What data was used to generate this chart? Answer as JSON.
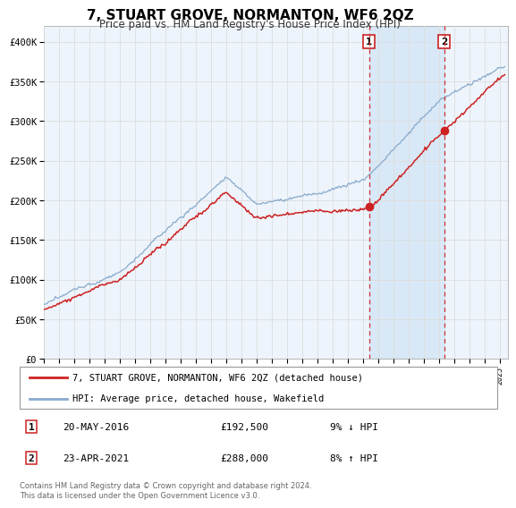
{
  "title": "7, STUART GROVE, NORMANTON, WF6 2QZ",
  "subtitle": "Price paid vs. HM Land Registry's House Price Index (HPI)",
  "ylim": [
    0,
    420000
  ],
  "yticks": [
    0,
    50000,
    100000,
    150000,
    200000,
    250000,
    300000,
    350000,
    400000
  ],
  "ytick_labels": [
    "£0",
    "£50K",
    "£100K",
    "£150K",
    "£200K",
    "£250K",
    "£300K",
    "£350K",
    "£400K"
  ],
  "legend_line1": "7, STUART GROVE, NORMANTON, WF6 2QZ (detached house)",
  "legend_line2": "HPI: Average price, detached house, Wakefield",
  "transaction1_date": "20-MAY-2016",
  "transaction1_price": "£192,500",
  "transaction1_hpi": "9% ↓ HPI",
  "transaction2_date": "23-APR-2021",
  "transaction2_price": "£288,000",
  "transaction2_hpi": "8% ↑ HPI",
  "footer": "Contains HM Land Registry data © Crown copyright and database right 2024.\nThis data is licensed under the Open Government Licence v3.0.",
  "line1_color": "#cc2222",
  "line2_color": "#88aacc",
  "dashed_color": "#cc3333",
  "background_color": "#ffffff",
  "plot_bg_color": "#eef4fb",
  "shade_color": "#d0e4f5",
  "grid_color": "#dddddd",
  "transaction1_year": 2016.38,
  "transaction1_value": 192500,
  "transaction2_year": 2021.31,
  "transaction2_value": 288000,
  "xlim_start": 1995,
  "xlim_end": 2025.5
}
